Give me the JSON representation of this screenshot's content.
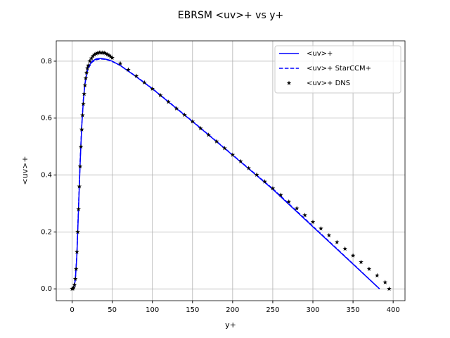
{
  "chart_data": {
    "type": "line",
    "title": "EBRSM <uv>+ vs y+",
    "x_label": "y+",
    "y_label": "<uv>+",
    "xlim": [
      -19.75,
      414.75
    ],
    "ylim": [
      -0.0415,
      0.8715
    ],
    "xticks": [
      0,
      50,
      100,
      150,
      200,
      250,
      300,
      350,
      400
    ],
    "yticks": [
      {
        "value": 0,
        "label": "0.0"
      },
      0.2,
      0.4,
      0.6,
      0.8
    ],
    "grid": true,
    "legend": "upper right",
    "series": [
      {
        "name": "<uv>+",
        "color": "#0000ff",
        "style": "solid",
        "x": [
          0,
          2,
          4,
          6,
          8,
          10,
          12,
          14,
          16,
          18,
          20,
          25,
          30,
          35,
          40,
          45,
          50,
          60,
          80,
          100,
          150,
          200,
          250,
          300,
          350,
          383
        ],
        "values": [
          0,
          0.004,
          0.03,
          0.12,
          0.28,
          0.44,
          0.57,
          0.66,
          0.72,
          0.755,
          0.78,
          0.8,
          0.808,
          0.81,
          0.808,
          0.805,
          0.8,
          0.785,
          0.745,
          0.703,
          0.588,
          0.47,
          0.35,
          0.218,
          0.087,
          0
        ]
      },
      {
        "name": "<uv>+ StarCCM+",
        "color": "#0000ff",
        "style": "dashed",
        "x": [
          0,
          2,
          4,
          6,
          8,
          10,
          12,
          14,
          16,
          18,
          20,
          25,
          30,
          35,
          40,
          45,
          50,
          60,
          80,
          100,
          150,
          200,
          250,
          300,
          350,
          383
        ],
        "values": [
          0,
          0.005,
          0.032,
          0.125,
          0.29,
          0.45,
          0.575,
          0.665,
          0.72,
          0.752,
          0.775,
          0.797,
          0.805,
          0.808,
          0.807,
          0.804,
          0.799,
          0.785,
          0.746,
          0.704,
          0.589,
          0.471,
          0.352,
          0.22,
          0.088,
          0
        ]
      },
      {
        "name": "<uv>+ DNS",
        "color": "#000000",
        "style": "markers",
        "x": [
          0,
          1,
          2,
          3,
          4,
          5,
          6,
          7,
          8,
          9,
          10,
          11,
          12,
          13,
          14,
          15,
          16,
          17,
          18,
          19,
          20,
          22,
          24,
          26,
          28,
          30,
          32,
          34,
          36,
          38,
          40,
          42,
          44,
          46,
          48,
          50,
          60,
          70,
          80,
          90,
          100,
          110,
          120,
          130,
          140,
          150,
          160,
          170,
          180,
          190,
          200,
          210,
          220,
          230,
          240,
          250,
          260,
          270,
          280,
          290,
          300,
          310,
          320,
          330,
          340,
          350,
          360,
          370,
          380,
          390,
          395
        ],
        "values": [
          0,
          0.001,
          0.005,
          0.015,
          0.035,
          0.07,
          0.13,
          0.2,
          0.28,
          0.36,
          0.43,
          0.5,
          0.56,
          0.61,
          0.65,
          0.685,
          0.715,
          0.74,
          0.76,
          0.775,
          0.785,
          0.8,
          0.81,
          0.818,
          0.823,
          0.827,
          0.829,
          0.83,
          0.83,
          0.83,
          0.829,
          0.827,
          0.824,
          0.82,
          0.816,
          0.812,
          0.792,
          0.77,
          0.748,
          0.725,
          0.703,
          0.68,
          0.657,
          0.634,
          0.611,
          0.588,
          0.564,
          0.541,
          0.518,
          0.494,
          0.471,
          0.448,
          0.424,
          0.401,
          0.377,
          0.353,
          0.33,
          0.306,
          0.283,
          0.259,
          0.235,
          0.212,
          0.188,
          0.164,
          0.141,
          0.117,
          0.094,
          0.07,
          0.047,
          0.023,
          0
        ]
      }
    ]
  }
}
